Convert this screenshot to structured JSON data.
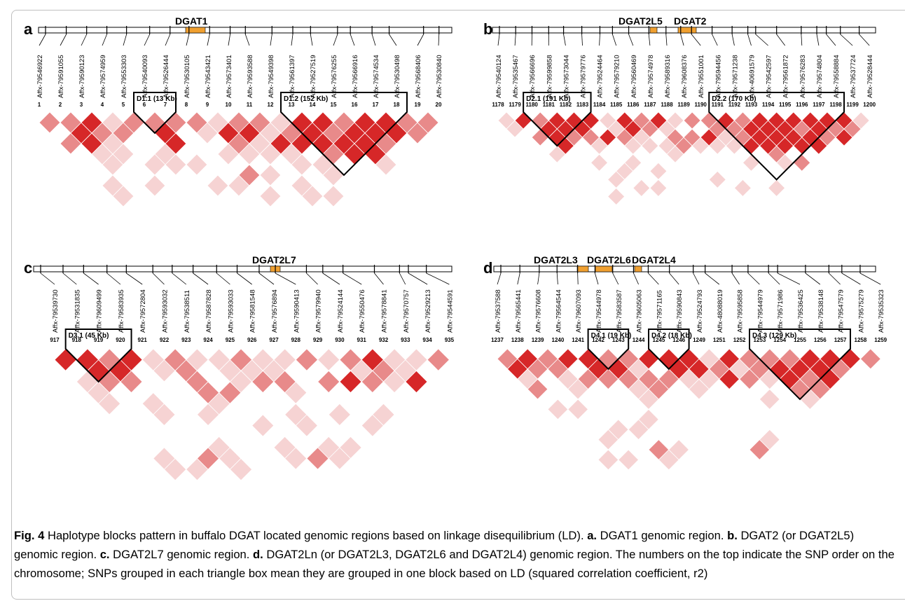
{
  "panels": [
    {
      "letter": "a",
      "genes": [
        "DGAT1"
      ],
      "snps": [
        "Affx-79546922",
        "Affx-79591055",
        "Affx-79590123",
        "Affx-79574959",
        "Affx-79553303",
        "Affx-79540093",
        "Affx-79526444",
        "Affx-79530105",
        "Affx-79543421",
        "Affx-79573401",
        "Affx-79593588",
        "Affx-79549398",
        "Affx-79561397",
        "Affx-79527519",
        "Affx-79576255",
        "Affx-79566916",
        "Affx-79574534",
        "Affx-79530498",
        "Affx-79568406",
        "Affx-79530840"
      ],
      "snp_numbers": [
        "1",
        "2",
        "3",
        "4",
        "5",
        "6",
        "7",
        "8",
        "9",
        "10",
        "11",
        "12",
        "13",
        "14",
        "15",
        "16",
        "17",
        "18",
        "19",
        "20"
      ],
      "blocks": [
        {
          "label": "D1.1 (13 Kb)",
          "from": 5,
          "to": 6
        },
        {
          "label": "D1.2 (152 Kb)",
          "from": 12,
          "to": 17
        }
      ]
    },
    {
      "letter": "b",
      "genes": [
        "DGAT2L5",
        "DGAT2"
      ],
      "snps": [
        "Affx-79540124",
        "Affx-79535467",
        "Affx-79566696",
        "Affx-79599858",
        "Affx-79573044",
        "Affx-79579776",
        "Affx-79524464",
        "Affx-79579210",
        "Affx-79560469",
        "Affx-79574978",
        "Affx-79589316",
        "Affx-79608376",
        "Affx-79551001",
        "Affx-79594456",
        "Affx-79571238",
        "Affx-40691579",
        "Affx-79542597",
        "Affx-79561872",
        "Affx-79576283",
        "Affx-79574804",
        "Affx-79558884",
        "Affx-79537724",
        "Affx-79528444"
      ],
      "snp_numbers": [
        "1178",
        "1179",
        "1180",
        "1181",
        "1182",
        "1183",
        "1184",
        "1185",
        "1186",
        "1187",
        "1188",
        "1189",
        "1190",
        "1191",
        "1192",
        "1193",
        "1194",
        "1195",
        "1196",
        "1197",
        "1198",
        "1199",
        "1200"
      ],
      "blocks": [
        {
          "label": "D2.1 (191 Kb)",
          "from": 2,
          "to": 5
        },
        {
          "label": "D2.2 (170 Kb)",
          "from": 13,
          "to": 20
        }
      ]
    },
    {
      "letter": "c",
      "genes": [
        "DGAT2L7"
      ],
      "snps": [
        "Affx-79539730",
        "Affx-79531835",
        "Affx-79609499",
        "Affx-79583935",
        "Affx-79572804",
        "Affx-79593032",
        "Affx-79538511",
        "Affx-79587828",
        "Affx-79593033",
        "Affx-79581548",
        "Affx-79576894",
        "Affx-79590413",
        "Affx-79579940",
        "Affx-79524144",
        "Affx-79550476",
        "Affx-79578841",
        "Affx-79570757",
        "Affx-79529213",
        "Affx-79544591"
      ],
      "snp_numbers": [
        "917",
        "918",
        "919",
        "920",
        "921",
        "922",
        "923",
        "924",
        "925",
        "926",
        "927",
        "928",
        "929",
        "930",
        "931",
        "932",
        "933",
        "934",
        "935"
      ],
      "blocks": [
        {
          "label": "D3.1 (45 Kb)",
          "from": 1,
          "to": 3
        }
      ]
    },
    {
      "letter": "d",
      "genes": [
        "DGAT2L3",
        "DGAT2L6",
        "DGAT2L4"
      ],
      "snps": [
        "Affx-79537588",
        "Affx-79565441",
        "Affx-79576608",
        "Affx-79564544",
        "Affx-79607093",
        "Affx-79544978",
        "Affx-79583587",
        "Affx-79605063",
        "Affx-79571165",
        "Affx-79590843",
        "Affx-79524793",
        "Affx-48088019",
        "Affx-79595858",
        "Affx-79544979",
        "Affx-79571986",
        "Affx-79536425",
        "Affx-79538148",
        "Affx-79547579",
        "Affx-79575279",
        "Affx-79535323"
      ],
      "snp_numbers": [
        "1237",
        "1238",
        "1239",
        "1240",
        "1241",
        "1242",
        "1243",
        "1244",
        "1245",
        "1246",
        "1249",
        "1251",
        "1252",
        "1253",
        "1254",
        "1255",
        "1256",
        "1257",
        "1258",
        "1259"
      ],
      "blocks": [
        {
          "label": "D4.1 (19 Kb)",
          "from": 5,
          "to": 6
        },
        {
          "label": "D4.2 (18 Kb)",
          "from": 8,
          "to": 9
        },
        {
          "label": "D4.3 (129 Kb)",
          "from": 13,
          "to": 17
        }
      ]
    }
  ],
  "caption": {
    "fig_label": "Fig. 4",
    "lead": "Haplotype blocks pattern in buffalo DGAT located genomic regions based on linkage disequilibrium (LD).",
    "a_label": "a.",
    "a_text": "DGAT1 genomic region.",
    "b_label": "b.",
    "b_text": "DGAT2 (or DGAT2L5) genomic region.",
    "c_label": "c.",
    "c_text": "DGAT2L7 genomic region.",
    "d_label": "d.",
    "d_text": "DGAT2Ln (or DGAT2L3, DGAT2L6 and DGAT2L4) genomic region. The numbers on the top indicate the SNP order on the chromosome; SNPs grouped in each triangle box mean they are grouped in one block based on LD (squared correlation coefficient, r2)"
  },
  "colors": {
    "strong_ld": "#d62728",
    "mid_ld": "#e88a8a",
    "weak_ld": "#f6d3d3",
    "gene_bar": "#f0a030",
    "block_outline": "#000000"
  }
}
